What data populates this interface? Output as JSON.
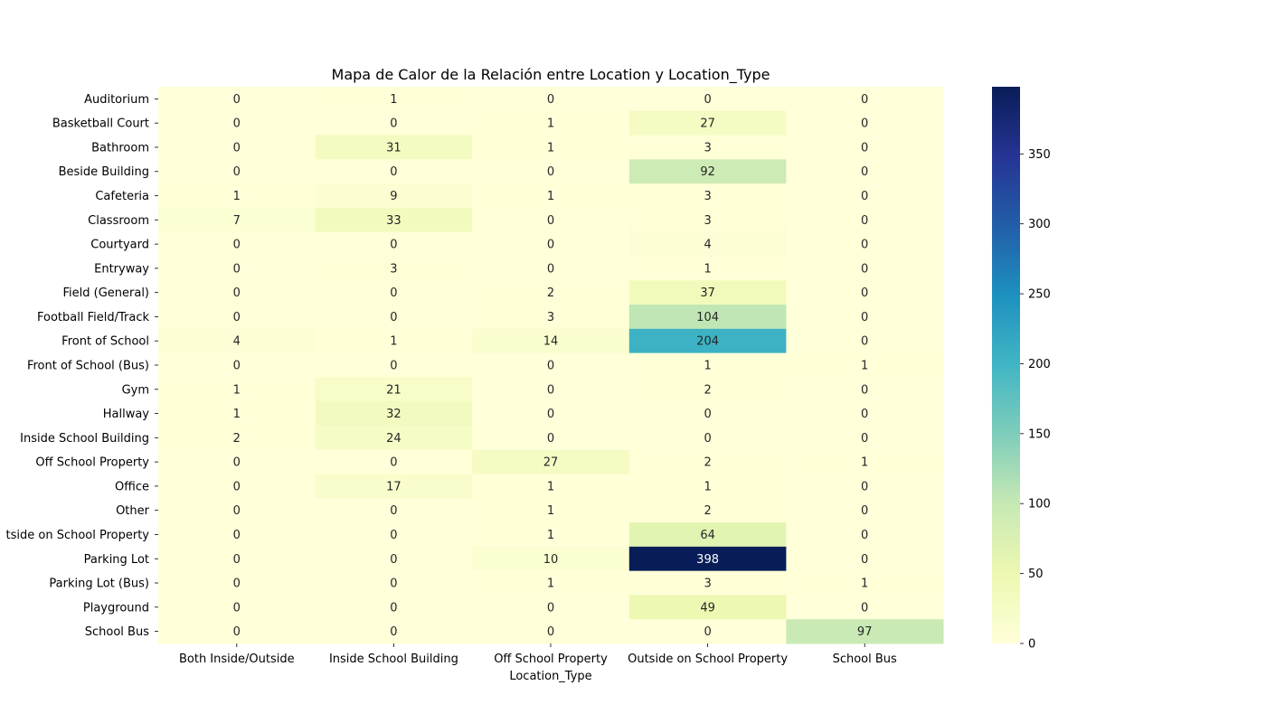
{
  "chart_data": {
    "type": "heatmap",
    "title": "Mapa de Calor de la Relación entre Location y Location_Type",
    "xlabel": "Location_Type",
    "ylabel": "",
    "columns": [
      "Both Inside/Outside",
      "Inside School Building",
      "Off School Property",
      "Outside on School Property",
      "School Bus"
    ],
    "rows": [
      "Auditorium",
      "Basketball Court",
      "Bathroom",
      "Beside Building",
      "Cafeteria",
      "Classroom",
      "Courtyard",
      "Entryway",
      "Field (General)",
      "Football Field/Track",
      "Front of School",
      "Front of School (Bus)",
      "Gym",
      "Hallway",
      "Inside School Building",
      "Off School Property",
      "Office",
      "Other",
      "Outside on School Property",
      "Parking Lot",
      "Parking Lot (Bus)",
      "Playground",
      "School Bus"
    ],
    "row_labels_as_shown": [
      "Auditorium",
      "Basketball Court",
      "Bathroom",
      "Beside Building",
      "Cafeteria",
      "Classroom",
      "Courtyard",
      "Entryway",
      "Field (General)",
      "Football Field/Track",
      "Front of School",
      "Front of School (Bus)",
      "Gym",
      "Hallway",
      "Inside School Building",
      "Off School Property",
      "Office",
      "Other",
      "tside on School Property",
      "Parking Lot",
      "Parking Lot (Bus)",
      "Playground",
      "School Bus"
    ],
    "values": [
      [
        0,
        1,
        0,
        0,
        0
      ],
      [
        0,
        0,
        1,
        27,
        0
      ],
      [
        0,
        31,
        1,
        3,
        0
      ],
      [
        0,
        0,
        0,
        92,
        0
      ],
      [
        1,
        9,
        1,
        3,
        0
      ],
      [
        7,
        33,
        0,
        3,
        0
      ],
      [
        0,
        0,
        0,
        4,
        0
      ],
      [
        0,
        3,
        0,
        1,
        0
      ],
      [
        0,
        0,
        2,
        37,
        0
      ],
      [
        0,
        0,
        3,
        104,
        0
      ],
      [
        4,
        1,
        14,
        204,
        0
      ],
      [
        0,
        0,
        0,
        1,
        1
      ],
      [
        1,
        21,
        0,
        2,
        0
      ],
      [
        1,
        32,
        0,
        0,
        0
      ],
      [
        2,
        24,
        0,
        0,
        0
      ],
      [
        0,
        0,
        27,
        2,
        1
      ],
      [
        0,
        17,
        1,
        1,
        0
      ],
      [
        0,
        0,
        1,
        2,
        0
      ],
      [
        0,
        0,
        1,
        64,
        0
      ],
      [
        0,
        0,
        10,
        398,
        0
      ],
      [
        0,
        0,
        1,
        3,
        1
      ],
      [
        0,
        0,
        0,
        49,
        0
      ],
      [
        0,
        0,
        0,
        0,
        97
      ]
    ],
    "colormap": "YlGnBu",
    "colormap_stops": [
      "#ffffd9",
      "#edf8b1",
      "#c7e9b4",
      "#7fcdbb",
      "#41b6c4",
      "#1d91c0",
      "#225ea8",
      "#253494",
      "#081d58"
    ],
    "vmin": 0,
    "vmax": 398,
    "colorbar_ticks": [
      0,
      50,
      100,
      150,
      200,
      250,
      300,
      350
    ],
    "annotations": true,
    "grid": false
  }
}
